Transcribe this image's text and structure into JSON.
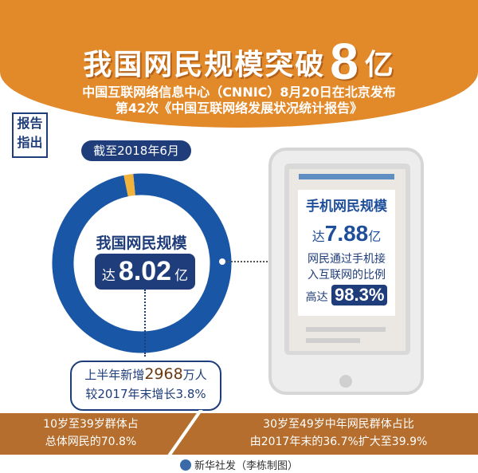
{
  "header": {
    "title_pre": "我国网民规模突破",
    "title_num": "8",
    "title_post": "亿",
    "subtitle_1": "中国互联网络信息中心（CNNIC）8月20日在北京发布",
    "subtitle_2": "第42次《中国互联网络发展状况统计报告》"
  },
  "tag": {
    "line1": "报告",
    "line2": "指出"
  },
  "date_label": "截至2018年6月",
  "donut": {
    "label": "我国网民规模",
    "prefix": "达",
    "value": "8.02",
    "unit": "亿"
  },
  "growth": {
    "l1_pre": "上半年新增",
    "l1_num": "2968",
    "l1_post": "万人",
    "l2": "较2017年末增长3.8%"
  },
  "phone": {
    "title": "手机网民规模",
    "prefix": "达",
    "value": "7.88",
    "unit": "亿",
    "desc1": "网民通过手机接",
    "desc2": "入互联网的比例",
    "pct_prefix": "高达",
    "pct": "98.3%"
  },
  "band": {
    "left_1": "10岁至39岁群体占",
    "left_2": "总体网民的70.8%",
    "right_1": "30岁至49岁中年网民群体占比",
    "right_2": "由2017年末的36.7%扩大至39.9%"
  },
  "footer": "新华社发（李栋制图）",
  "chart_data": {
    "type": "pie",
    "values": [
      98.3,
      1.7
    ],
    "colors": [
      "#1a56a6",
      "#f2b33d"
    ]
  }
}
